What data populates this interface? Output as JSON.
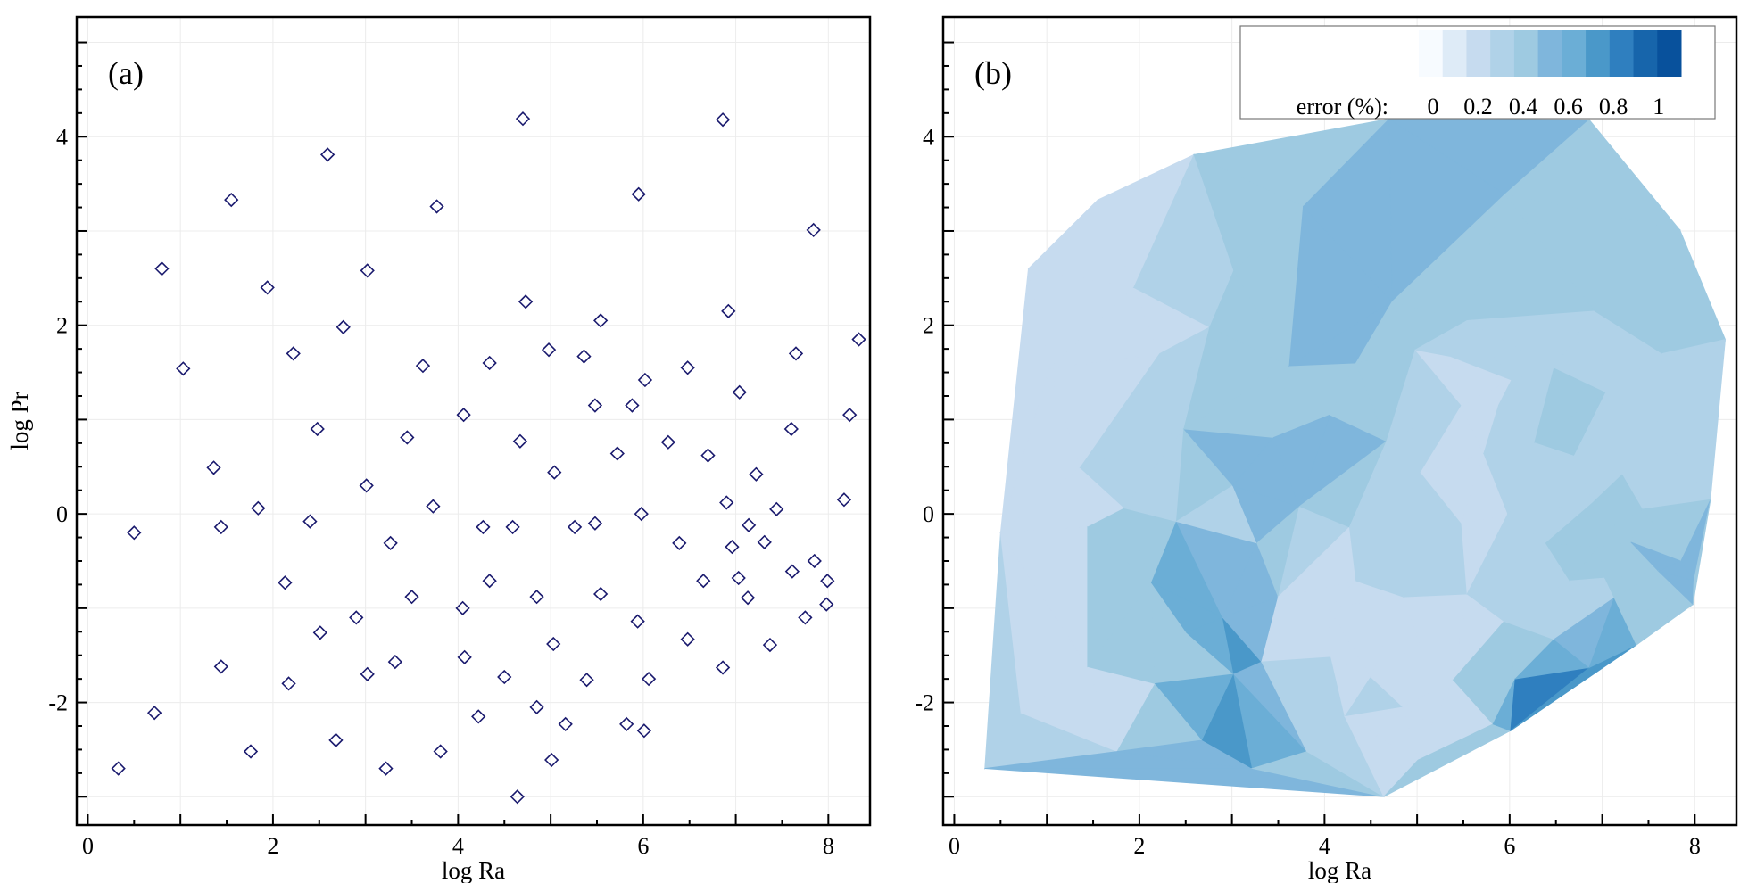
{
  "chart_data": [
    {
      "type": "scatter",
      "panel_label": "(a)",
      "xlabel": "log Ra",
      "ylabel": "log Pr",
      "xlim": [
        -0.12,
        8.45
      ],
      "ylim": [
        -3.3,
        5.27
      ],
      "xticks": [
        0,
        2,
        4,
        6,
        8
      ],
      "yticks": [
        -2,
        0,
        2,
        4
      ],
      "xtick_labels": [
        "0",
        "2",
        "4",
        "6",
        "8"
      ],
      "ytick_labels": [
        "-2",
        "0",
        "2",
        "4"
      ],
      "grid": true,
      "marker": "diamond-open",
      "marker_color": "#1a1a6e",
      "points": [
        [
          0.33,
          -2.7
        ],
        [
          0.5,
          -0.2
        ],
        [
          0.72,
          -2.11
        ],
        [
          0.8,
          2.6
        ],
        [
          1.03,
          1.54
        ],
        [
          1.36,
          0.49
        ],
        [
          1.44,
          -0.14
        ],
        [
          1.44,
          -1.62
        ],
        [
          1.55,
          3.33
        ],
        [
          1.76,
          -2.52
        ],
        [
          1.84,
          0.06
        ],
        [
          1.94,
          2.4
        ],
        [
          2.13,
          -0.73
        ],
        [
          2.17,
          -1.8
        ],
        [
          2.22,
          1.7
        ],
        [
          2.4,
          -0.08
        ],
        [
          2.48,
          0.9
        ],
        [
          2.51,
          -1.26
        ],
        [
          2.59,
          3.81
        ],
        [
          2.68,
          -2.4
        ],
        [
          2.76,
          1.98
        ],
        [
          2.9,
          -1.1
        ],
        [
          3.01,
          0.3
        ],
        [
          3.02,
          2.58
        ],
        [
          3.02,
          -1.7
        ],
        [
          3.22,
          -2.7
        ],
        [
          3.27,
          -0.31
        ],
        [
          3.32,
          -1.57
        ],
        [
          3.45,
          0.81
        ],
        [
          3.5,
          -0.88
        ],
        [
          3.62,
          1.57
        ],
        [
          3.73,
          0.08
        ],
        [
          3.77,
          3.26
        ],
        [
          3.81,
          -2.52
        ],
        [
          4.05,
          -1.0
        ],
        [
          4.06,
          1.05
        ],
        [
          4.07,
          -1.52
        ],
        [
          4.22,
          -2.15
        ],
        [
          4.27,
          -0.14
        ],
        [
          4.34,
          -0.71
        ],
        [
          4.34,
          1.6
        ],
        [
          4.5,
          -1.73
        ],
        [
          4.59,
          -0.14
        ],
        [
          4.64,
          -3.0
        ],
        [
          4.67,
          0.77
        ],
        [
          4.7,
          4.19
        ],
        [
          4.73,
          2.25
        ],
        [
          4.85,
          -0.88
        ],
        [
          4.85,
          -2.05
        ],
        [
          4.98,
          1.74
        ],
        [
          5.01,
          -2.61
        ],
        [
          5.03,
          -1.38
        ],
        [
          5.04,
          0.44
        ],
        [
          5.16,
          -2.23
        ],
        [
          5.26,
          -0.14
        ],
        [
          5.36,
          1.67
        ],
        [
          5.39,
          -1.76
        ],
        [
          5.48,
          -0.1
        ],
        [
          5.48,
          1.15
        ],
        [
          5.54,
          2.05
        ],
        [
          5.54,
          -0.85
        ],
        [
          5.72,
          0.64
        ],
        [
          5.82,
          -2.23
        ],
        [
          5.88,
          1.15
        ],
        [
          5.94,
          -1.14
        ],
        [
          5.95,
          3.39
        ],
        [
          5.98,
          0.0
        ],
        [
          6.01,
          -2.3
        ],
        [
          6.02,
          1.42
        ],
        [
          6.06,
          -1.75
        ],
        [
          6.27,
          0.76
        ],
        [
          6.39,
          -0.31
        ],
        [
          6.48,
          1.55
        ],
        [
          6.48,
          -1.33
        ],
        [
          6.65,
          -0.71
        ],
        [
          6.7,
          0.62
        ],
        [
          6.86,
          4.18
        ],
        [
          6.86,
          -1.63
        ],
        [
          6.9,
          0.12
        ],
        [
          6.92,
          2.15
        ],
        [
          6.96,
          -0.35
        ],
        [
          7.03,
          -0.68
        ],
        [
          7.04,
          1.29
        ],
        [
          7.14,
          -0.12
        ],
        [
          7.13,
          -0.89
        ],
        [
          7.22,
          0.42
        ],
        [
          7.31,
          -0.3
        ],
        [
          7.37,
          -1.39
        ],
        [
          7.44,
          0.05
        ],
        [
          7.6,
          0.9
        ],
        [
          7.61,
          -0.61
        ],
        [
          7.65,
          1.7
        ],
        [
          7.75,
          -1.1
        ],
        [
          7.84,
          3.01
        ],
        [
          7.85,
          -0.5
        ],
        [
          7.98,
          -0.96
        ],
        [
          7.99,
          -0.71
        ],
        [
          8.17,
          0.15
        ],
        [
          8.23,
          1.05
        ],
        [
          8.33,
          1.85
        ]
      ]
    },
    {
      "type": "heatmap",
      "subtype": "triangulated-contour",
      "panel_label": "(b)",
      "xlabel": "log Ra",
      "ylabel": "",
      "xlim": [
        -0.12,
        8.45
      ],
      "ylim": [
        -3.3,
        5.27
      ],
      "xticks": [
        0,
        2,
        4,
        6,
        8
      ],
      "yticks": [
        -2,
        0,
        2,
        4
      ],
      "xtick_labels": [
        "0",
        "2",
        "4",
        "6",
        "8"
      ],
      "ytick_labels": [
        "-2",
        "0",
        "2",
        "4"
      ],
      "grid": true,
      "legend": {
        "title": "error (%):",
        "placement": "top-right",
        "tick_labels": [
          "0",
          "0.2",
          "0.4",
          "0.6",
          "0.8",
          "1"
        ],
        "range": [
          0,
          1
        ],
        "colors": [
          "#f7fbff",
          "#deebf7",
          "#c6dbef",
          "#b0d2e8",
          "#9ecae1",
          "#7fb6dc",
          "#6baed6",
          "#4a98c9",
          "#2f7fbf",
          "#1765ab",
          "#08519c"
        ]
      },
      "error_percent": [
        0.6,
        0.2,
        0.2,
        0.15,
        0.2,
        0.15,
        0.2,
        0.2,
        0.15,
        0.15,
        0.2,
        0.2,
        0.8,
        0.25,
        0.2,
        0.2,
        0.5,
        0.2,
        0.35,
        0.7,
        0.3,
        0.9,
        0.5,
        0.35,
        0.8,
        0.7,
        0.3,
        0.3,
        0.35,
        0.2,
        0.45,
        0.6,
        0.45,
        0.3,
        0.2,
        0.4,
        0.2,
        0.25,
        0.2,
        0.3,
        0.45,
        0.2,
        0.4,
        0.2,
        0.35,
        0.5,
        0.55,
        0.2,
        0.3,
        0.25,
        0.15,
        0.2,
        0.25,
        0.2,
        0.25,
        0.3,
        0.2,
        0.25,
        0.15,
        0.35,
        0.3,
        0.2,
        0.3,
        0.15,
        0.2,
        0.4,
        0.15,
        0.8,
        0.2,
        0.7,
        0.5,
        0.45,
        0.3,
        0.3,
        0.3,
        0.3,
        0.5,
        0.8,
        0.35,
        0.4,
        0.5,
        0.35,
        0.3,
        0.4,
        0.3,
        0.35,
        0.4,
        0.6,
        0.3,
        0.3,
        0.5,
        0.3,
        0.3,
        0.4,
        0.5,
        0.3,
        0.6,
        0.3,
        0.3,
        0.4
      ]
    }
  ]
}
